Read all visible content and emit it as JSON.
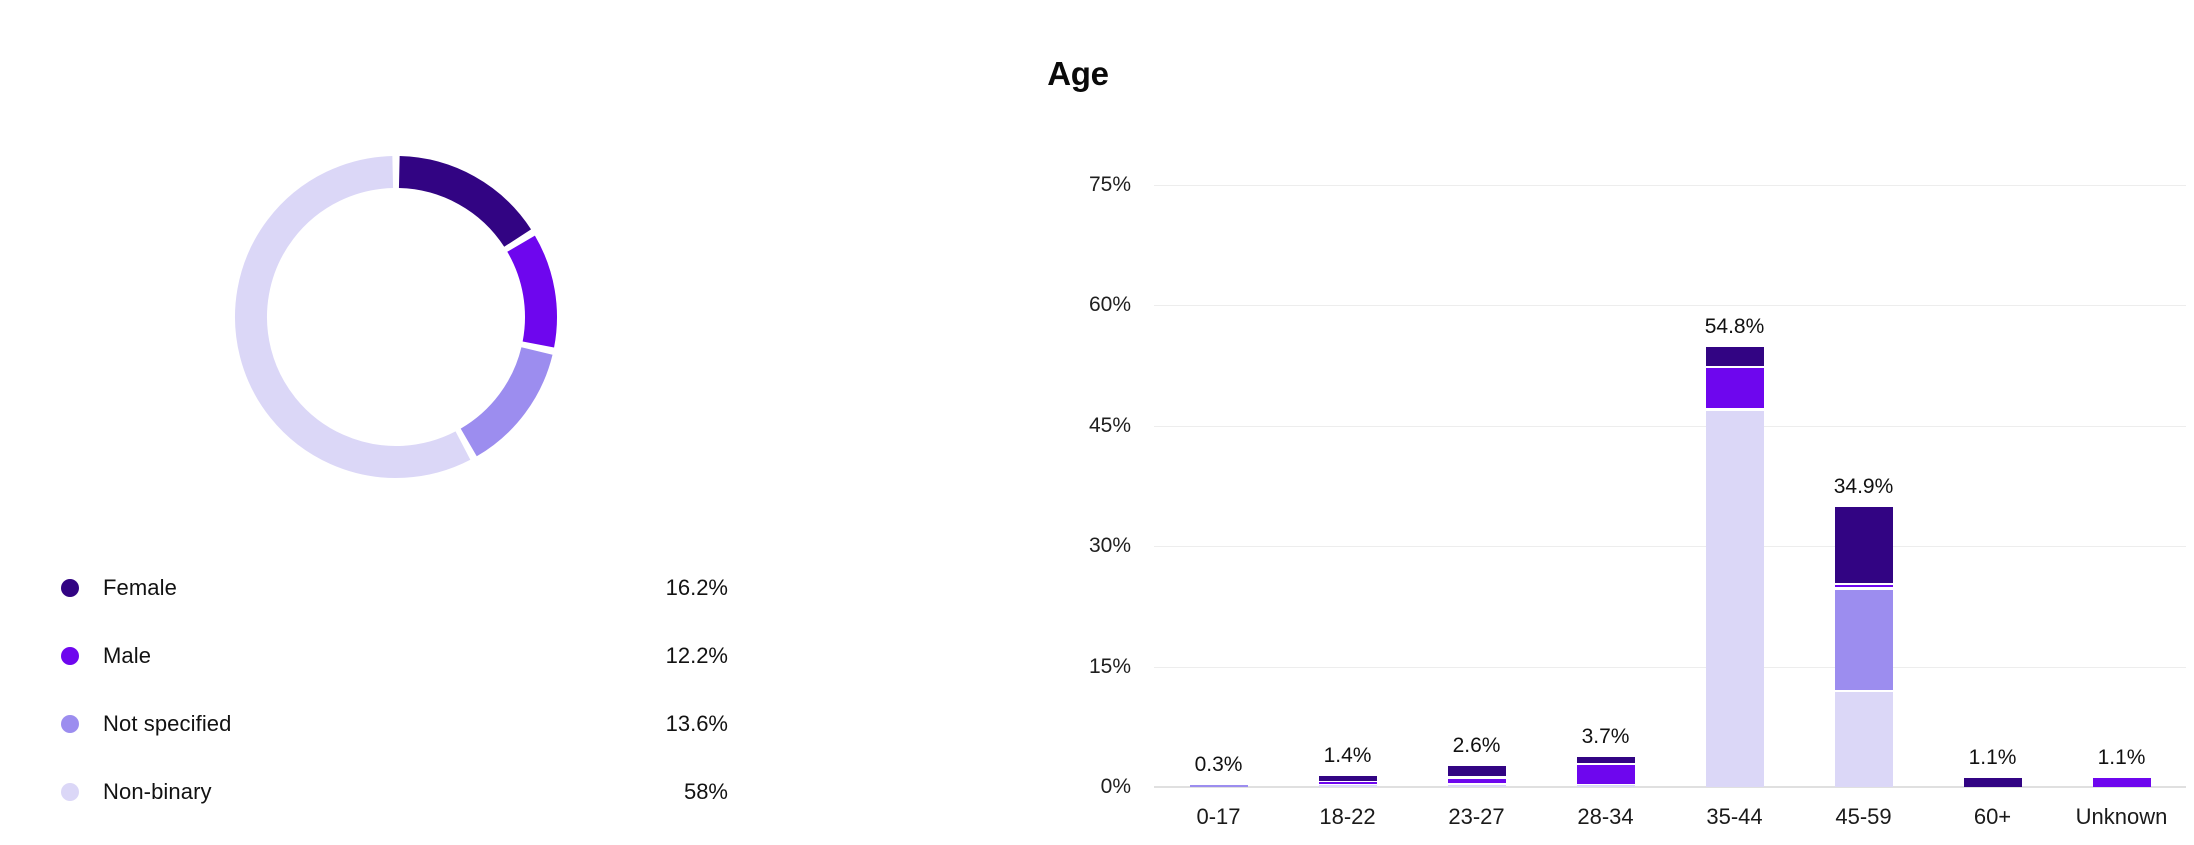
{
  "chart_data": [
    {
      "type": "pie",
      "subtype": "donut",
      "title": "",
      "labels": [
        "Female",
        "Male",
        "Not specified",
        "Non-binary"
      ],
      "values": [
        16.2,
        12.2,
        13.6,
        58
      ],
      "value_labels": [
        "16.2%",
        "12.2%",
        "13.6%",
        "58%"
      ],
      "colors": [
        "#320483",
        "#6e06ee",
        "#9c8def",
        "#dbd7f7"
      ],
      "legend_position": "below-left",
      "start_angle_deg": 0,
      "direction": "clockwise"
    },
    {
      "type": "bar",
      "stacked": true,
      "title": "Age",
      "categories": [
        "0-17",
        "18-22",
        "23-27",
        "28-34",
        "35-44",
        "45-59",
        "60+",
        "Unknown"
      ],
      "totals": [
        0.3,
        1.4,
        2.6,
        3.7,
        54.8,
        34.9,
        1.1,
        1.1
      ],
      "total_labels": [
        "0.3%",
        "1.4%",
        "2.6%",
        "3.7%",
        "54.8%",
        "34.9%",
        "1.1%",
        "1.1%"
      ],
      "series": [
        {
          "name": "Non-binary",
          "color": "#dbd7f7",
          "values": [
            0,
            0.4,
            0.45,
            0.4,
            47.2,
            12.1,
            0,
            0
          ]
        },
        {
          "name": "Not specified",
          "color": "#9c8def",
          "values": [
            0.3,
            0,
            0,
            0,
            0,
            12.8,
            0,
            0
          ]
        },
        {
          "name": "Male",
          "color": "#6e06ee",
          "values": [
            0,
            0.3,
            0.9,
            2.6,
            5.3,
            0.5,
            0,
            1.1
          ]
        },
        {
          "name": "Female",
          "color": "#320483",
          "values": [
            0,
            0.7,
            1.25,
            0.7,
            2.3,
            9.5,
            1.1,
            0
          ]
        }
      ],
      "y_tick_labels": [
        "75%",
        "60%",
        "45%",
        "30%",
        "15%",
        "0%"
      ],
      "y_tick_values": [
        75,
        60,
        45,
        30,
        15,
        0
      ],
      "ylim": [
        0,
        75
      ],
      "grid": true,
      "grid_color": "#ededed",
      "axis_line_color": "#e0e0e0"
    }
  ]
}
